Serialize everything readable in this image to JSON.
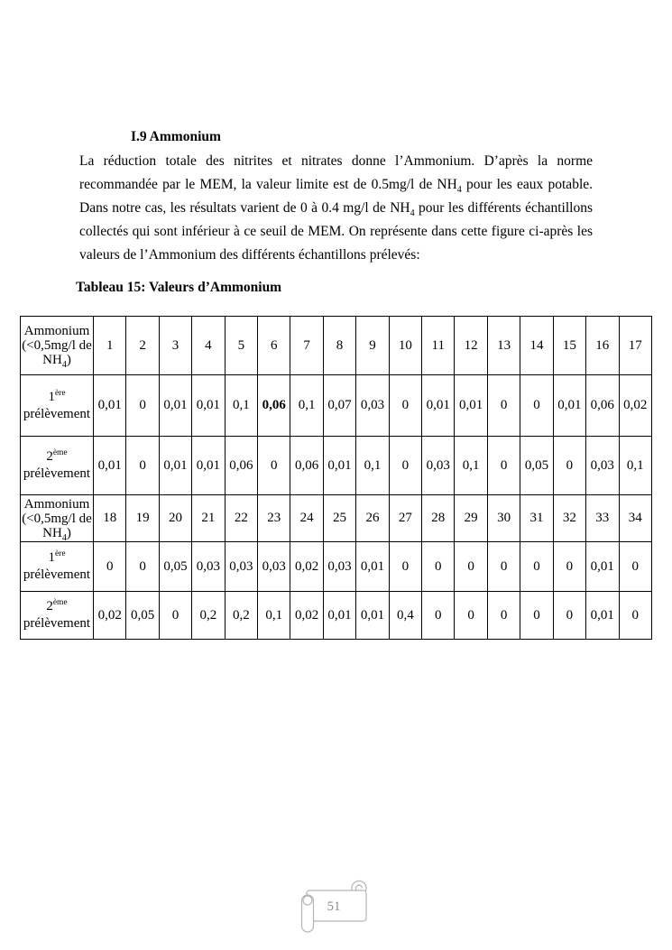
{
  "document": {
    "heading": "I.9 Ammonium",
    "paragraph": {
      "part1": "La réduction totale des nitrites et nitrates donne l’Ammonium. D’après la norme recommandée par le MEM, la valeur limite est de 0.5mg/l de NH",
      "sub1": "4",
      "part2": " pour les eaux potable. Dans notre cas, les résultats varient de 0 à 0.4 mg/l de NH",
      "sub2": "4",
      "part3": " pour les différents échantillons collectés qui sont inférieur à ce seuil de MEM. On représente dans cette figure ci-après les valeurs de l’Ammonium des différents échantillons prélevés:"
    },
    "table_title": "Tableau 15: Valeurs d’Ammonium",
    "table": {
      "corner_label_pre": "Ammonium (<0,5mg/l de NH",
      "corner_label_sub": "4",
      "corner_label_post": ")",
      "first_row_label": {
        "num": "1",
        "sup": "ère",
        "word": "prélèvement"
      },
      "second_row_label": {
        "num": "2",
        "sup": "ème",
        "word": "prélèvement"
      },
      "block1": {
        "columns": [
          "1",
          "2",
          "3",
          "4",
          "5",
          "6",
          "7",
          "8",
          "9",
          "10",
          "11",
          "12",
          "13",
          "14",
          "15",
          "16",
          "17"
        ],
        "premier": [
          "0,01",
          "0",
          "0,01",
          "0,01",
          "0,1",
          "0,06",
          "0,1",
          "0,07",
          "0,03",
          "0",
          "0,01",
          "0,01",
          "0",
          "0",
          "0,01",
          "0,06",
          "0,02"
        ],
        "premier_bold_index": 5,
        "deuxieme": [
          "0,01",
          "0",
          "0,01",
          "0,01",
          "0,06",
          "0",
          "0,06",
          "0,01",
          "0,1",
          "0",
          "0,03",
          "0,1",
          "0",
          "0,05",
          "0",
          "0,03",
          "0,1"
        ]
      },
      "block2": {
        "columns": [
          "18",
          "19",
          "20",
          "21",
          "22",
          "23",
          "24",
          "25",
          "26",
          "27",
          "28",
          "29",
          "30",
          "31",
          "32",
          "33",
          "34"
        ],
        "premier": [
          "0",
          "0",
          "0,05",
          "0,03",
          "0,03",
          "0,03",
          "0,02",
          "0,03",
          "0,01",
          "0",
          "0",
          "0",
          "0",
          "0",
          "0",
          "0,01",
          "0"
        ],
        "deuxieme": [
          "0,02",
          "0,05",
          "0",
          "0,2",
          "0,2",
          "0,1",
          "0,02",
          "0,01",
          "0,01",
          "0,4",
          "0",
          "0",
          "0",
          "0",
          "0",
          "0,01",
          "0"
        ]
      }
    },
    "footer": {
      "page_number": "51"
    }
  }
}
